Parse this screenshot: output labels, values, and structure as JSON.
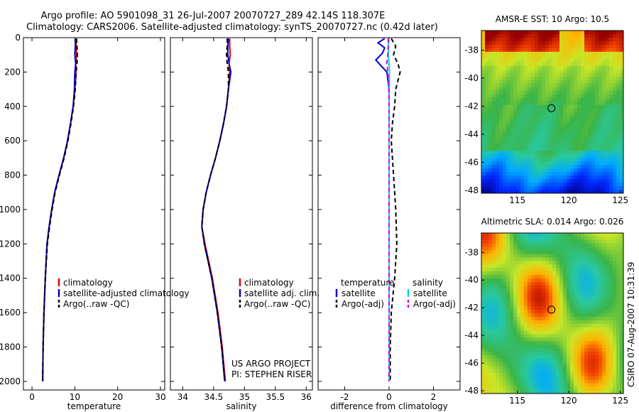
{
  "header": {
    "line1": "Argo profile: AO 5901098_31 26-Jul-2007 20070727_289 42.14S 118.307E",
    "line2": "Climatology: CARS2006. Satellite-adjusted climatology: synTS_20070727.nc (0.42d later)"
  },
  "colors": {
    "climatology": "#dd0000",
    "satellite": "#0000cc",
    "argo": "#000000",
    "sat_salinity": "#00dddd",
    "argo_salinity": "#dd00dd"
  },
  "chart_data": [
    {
      "id": "temperature",
      "type": "line",
      "xlabel": "temperature",
      "xlim": [
        -2,
        31
      ],
      "ylim": [
        2050,
        0
      ],
      "xticks": [
        "0",
        "10",
        "20",
        "30"
      ],
      "xtick_values": [
        0,
        10,
        20,
        30
      ],
      "yticks": [
        "0",
        "200",
        "400",
        "600",
        "800",
        "1000",
        "1200",
        "1400",
        "1600",
        "1800",
        "2000"
      ],
      "ytick_values": [
        0,
        200,
        400,
        600,
        800,
        1000,
        1200,
        1400,
        1600,
        1800,
        2000
      ],
      "legend_labels": [
        "climatology",
        "satellite-adjusted climatology",
        "Argo(..raw -QC)"
      ],
      "series": [
        {
          "name": "climatology",
          "color": "#dd0000",
          "dash": "",
          "x": [
            10.3,
            10.3,
            10.4,
            10.2,
            10.3,
            10.0,
            9.6,
            9.0,
            8.3,
            7.4,
            6.3,
            5.3,
            4.6,
            4.0,
            3.5,
            3.1,
            2.8,
            2.6,
            2.5
          ],
          "y": [
            5,
            50,
            100,
            150,
            200,
            300,
            400,
            500,
            600,
            700,
            800,
            900,
            1000,
            1100,
            1200,
            1400,
            1600,
            1800,
            2000
          ]
        },
        {
          "name": "satellite-adjusted climatology",
          "color": "#0000cc",
          "dash": "",
          "x": [
            10.1,
            10.1,
            10.0,
            10.2,
            10.0,
            9.9,
            9.6,
            9.0,
            8.3,
            7.4,
            6.3,
            5.3,
            4.6,
            4.0,
            3.5,
            3.1,
            2.8,
            2.6,
            2.5
          ],
          "y": [
            5,
            50,
            100,
            150,
            200,
            300,
            400,
            500,
            600,
            700,
            800,
            900,
            1000,
            1100,
            1200,
            1400,
            1600,
            1800,
            2000
          ]
        },
        {
          "name": "Argo(..raw -QC)",
          "color": "#000000",
          "dash": "6,4",
          "x": [
            10.4,
            10.5,
            10.6,
            10.5,
            10.3,
            10.1,
            9.7,
            9.1,
            8.4,
            7.5,
            6.4,
            5.4,
            4.7,
            4.1,
            3.6,
            3.1,
            2.8,
            2.6,
            2.5
          ],
          "y": [
            5,
            50,
            100,
            150,
            200,
            300,
            400,
            500,
            600,
            700,
            800,
            900,
            1000,
            1100,
            1200,
            1400,
            1600,
            1800,
            2000
          ]
        }
      ]
    },
    {
      "id": "salinity",
      "type": "line",
      "xlabel": "salinity",
      "xlim": [
        33.8,
        36.1
      ],
      "ylim": [
        2050,
        0
      ],
      "xticks": [
        "34",
        "34.5",
        "35",
        "35.5",
        "36"
      ],
      "xtick_values": [
        34,
        34.5,
        35,
        35.5,
        36
      ],
      "legend_labels": [
        "climatology",
        "satellite adj. clim.",
        "Argo(..raw -QC)"
      ],
      "annotation": [
        "US ARGO PROJECT",
        "PI: STEPHEN RISER"
      ],
      "series": [
        {
          "name": "climatology",
          "color": "#dd0000",
          "dash": "",
          "x": [
            34.76,
            34.76,
            34.77,
            34.75,
            34.76,
            34.74,
            34.71,
            34.66,
            34.6,
            34.53,
            34.45,
            34.38,
            34.33,
            34.31,
            34.36,
            34.48,
            34.57,
            34.64,
            34.69
          ],
          "y": [
            5,
            50,
            100,
            150,
            200,
            300,
            400,
            500,
            600,
            700,
            800,
            900,
            1000,
            1100,
            1200,
            1400,
            1600,
            1800,
            2000
          ]
        },
        {
          "name": "satellite adj. clim.",
          "color": "#0000cc",
          "dash": "",
          "x": [
            34.74,
            34.73,
            34.73,
            34.75,
            34.78,
            34.74,
            34.71,
            34.66,
            34.6,
            34.53,
            34.45,
            34.38,
            34.33,
            34.31,
            34.35,
            34.47,
            34.56,
            34.63,
            34.68
          ],
          "y": [
            5,
            50,
            100,
            150,
            200,
            300,
            400,
            500,
            600,
            700,
            800,
            900,
            1000,
            1100,
            1200,
            1400,
            1600,
            1800,
            2000
          ]
        },
        {
          "name": "Argo(..raw -QC)",
          "color": "#000000",
          "dash": "6,4",
          "x": [
            34.72,
            34.72,
            34.71,
            34.72,
            34.74,
            34.74,
            34.71,
            34.66,
            34.6,
            34.53,
            34.45,
            34.38,
            34.33,
            34.31,
            34.35,
            34.47,
            34.56,
            34.63,
            34.68
          ],
          "y": [
            5,
            50,
            100,
            150,
            200,
            300,
            400,
            500,
            600,
            700,
            800,
            900,
            1000,
            1100,
            1200,
            1400,
            1600,
            1800,
            2000
          ]
        }
      ]
    },
    {
      "id": "difference",
      "type": "line",
      "xlabel": "difference from climatology",
      "xlim": [
        -3.2,
        3.2
      ],
      "ylim": [
        2050,
        0
      ],
      "xticks": [
        "-2",
        "0",
        "2"
      ],
      "xtick_values": [
        -2,
        0,
        2
      ],
      "legend_headers": [
        "temperature",
        "salinity"
      ],
      "legend_labels": [
        "satellite",
        "Argo(-adj)",
        "satellite",
        "Argo(-adj)"
      ],
      "series": [
        {
          "name": "temperature satellite",
          "color": "#0000cc",
          "dash": "",
          "x": [
            -0.2,
            -0.5,
            -0.2,
            -0.3,
            -0.6,
            -0.1,
            0.0,
            0.0,
            0.0,
            0.0,
            0.0,
            0.0,
            0.0,
            0.0,
            0.0,
            0.0
          ],
          "y": [
            5,
            30,
            60,
            90,
            130,
            200,
            300,
            500,
            700,
            900,
            1100,
            1300,
            1500,
            1700,
            1900,
            2000
          ]
        },
        {
          "name": "temperature Argo(-adj)",
          "color": "#000000",
          "dash": "6,4",
          "x": [
            0.1,
            0.3,
            0.2,
            0.4,
            0.5,
            0.3,
            0.25,
            0.15,
            0.1,
            0.2,
            0.3,
            0.35,
            0.3,
            0.25,
            0.1,
            0.05,
            0.05,
            0.05
          ],
          "y": [
            5,
            50,
            100,
            150,
            200,
            300,
            400,
            500,
            600,
            800,
            1000,
            1200,
            1300,
            1400,
            1600,
            1800,
            1900,
            2000
          ]
        },
        {
          "name": "salinity satellite",
          "color": "#00dddd",
          "dash": "",
          "x": [
            -0.02,
            -0.03,
            -0.04,
            0.0,
            0.02,
            0.0,
            0.0,
            0.0,
            0.0
          ],
          "y": [
            5,
            50,
            100,
            150,
            200,
            400,
            800,
            1400,
            2000
          ]
        },
        {
          "name": "salinity Argo(-adj)",
          "color": "#dd00dd",
          "dash": "6,4",
          "x": [
            -0.04,
            -0.04,
            -0.06,
            -0.1,
            -0.02,
            0.0,
            0.0,
            0.0,
            0.0
          ],
          "y": [
            5,
            50,
            100,
            150,
            250,
            400,
            800,
            1400,
            2000
          ]
        }
      ]
    },
    {
      "id": "sst_map",
      "type": "heatmap",
      "title": "AMSR-E SST: 10 Argo: 10.5",
      "xlim": [
        111.5,
        125.3
      ],
      "ylim": [
        -48.2,
        -36.6
      ],
      "xticks": [
        "115",
        "120",
        "125"
      ],
      "xtick_values": [
        115,
        120,
        125
      ],
      "yticks": [
        "-38",
        "-40",
        "-42",
        "-44",
        "-46",
        "-48"
      ],
      "ytick_values": [
        -38,
        -40,
        -42,
        -44,
        -46,
        -48
      ],
      "marker": {
        "lon": 118.307,
        "lat": -42.14
      }
    },
    {
      "id": "sla_map",
      "type": "heatmap",
      "title": "Altimetric SLA: 0.014 Argo: 0.026",
      "xlim": [
        111.5,
        125.3
      ],
      "ylim": [
        -48.2,
        -36.6
      ],
      "xticks": [
        "115",
        "120",
        "125"
      ],
      "xtick_values": [
        115,
        120,
        125
      ],
      "yticks": [
        "-38",
        "-40",
        "-42",
        "-44",
        "-46",
        "-48"
      ],
      "ytick_values": [
        -38,
        -40,
        -42,
        -44,
        -46,
        -48
      ],
      "marker": {
        "lon": 118.307,
        "lat": -42.14
      }
    }
  ],
  "footer": {
    "stamp": "CSIRO 07-Aug-2007 10:31:39"
  }
}
